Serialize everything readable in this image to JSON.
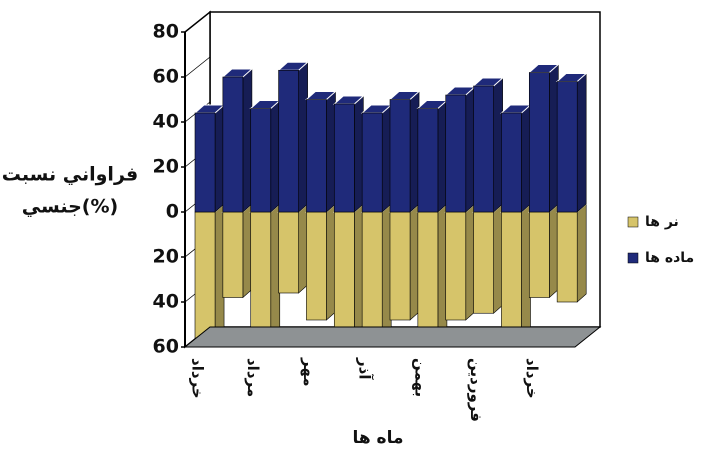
{
  "chart_data": {
    "type": "bar3d",
    "y_label": [
      "فراواني نسبت",
      "جنسي(%)"
    ],
    "x_label": "ماه ها",
    "categories": [
      "خرداد",
      null,
      "مرداد",
      null,
      "مهر",
      null,
      "آذر",
      null,
      "بهمن",
      null,
      "فروردين",
      null,
      "خرداد",
      null
    ],
    "series": [
      {
        "name": "نر ها",
        "color": "#d6c46a",
        "values": [
          -56,
          -38,
          -56,
          -36,
          -48,
          -54,
          -57,
          -48,
          -55,
          -48,
          -45,
          -56,
          -38,
          -40
        ]
      },
      {
        "name": "ماده ها",
        "color": "#1f2a7a",
        "values": [
          44,
          60,
          46,
          63,
          50,
          48,
          44,
          50,
          46,
          52,
          56,
          44,
          62,
          58
        ]
      }
    ],
    "ylim": [
      -60,
      80
    ],
    "yticks": [
      {
        "value": -60,
        "label": "60"
      },
      {
        "value": -40,
        "label": "40"
      },
      {
        "value": -20,
        "label": "20"
      },
      0,
      20,
      40,
      60,
      80
    ]
  }
}
